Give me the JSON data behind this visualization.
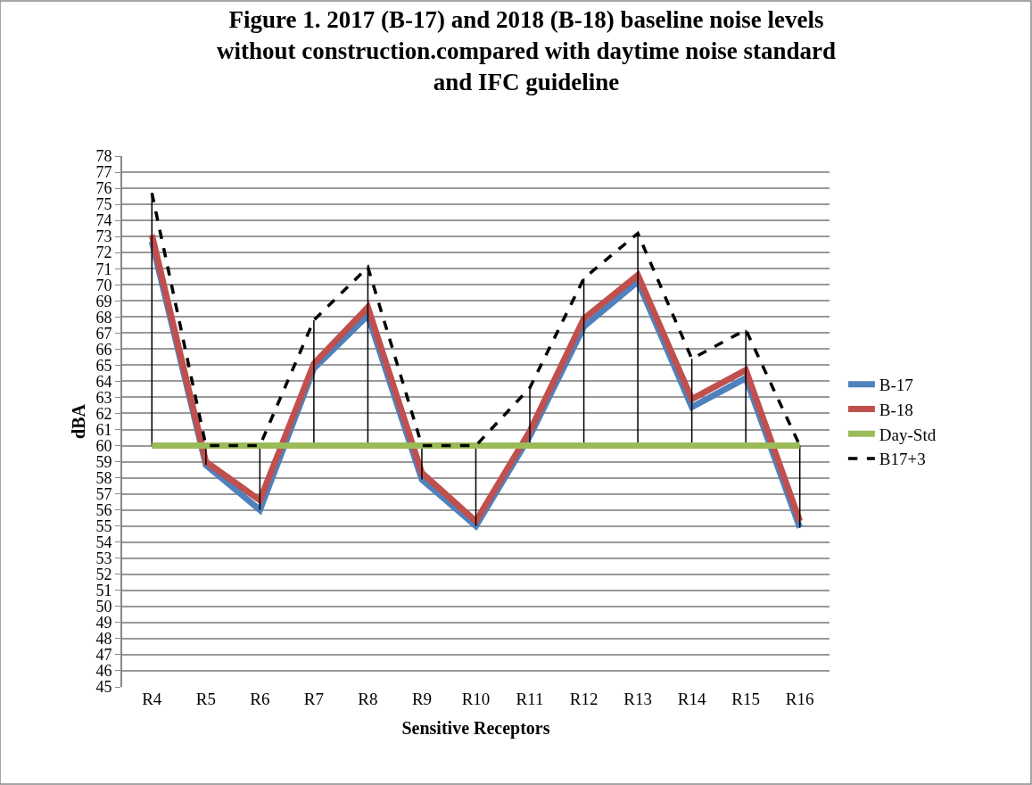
{
  "chart_data": {
    "type": "line",
    "title": "Figure 1. 2017 (B-17) and 2018 (B-18) baseline noise levels without construction.compared with daytime noise standard and IFC guideline",
    "xlabel": "Sensitive Receptors",
    "ylabel": "dBA",
    "categories": [
      "R4",
      "R5",
      "R6",
      "R7",
      "R8",
      "R9",
      "R10",
      "R11",
      "R12",
      "R13",
      "R14",
      "R15",
      "R16"
    ],
    "series": [
      {
        "name": "B-17",
        "color": "#4f81bd",
        "values": [
          72.7,
          58.8,
          56.0,
          64.8,
          68.1,
          57.9,
          55.0,
          60.6,
          67.4,
          70.2,
          62.4,
          64.2,
          54.9
        ]
      },
      {
        "name": "B-18",
        "color": "#c0504d",
        "values": [
          73.1,
          59.0,
          56.6,
          65.1,
          68.6,
          58.3,
          55.3,
          60.9,
          67.9,
          70.6,
          62.9,
          64.7,
          55.3
        ]
      },
      {
        "name": "Day-Std",
        "color": "#9bbb59",
        "values": [
          60,
          60,
          60,
          60,
          60,
          60,
          60,
          60,
          60,
          60,
          60,
          60,
          60
        ],
        "errors": [
          [
            60,
            75.7
          ],
          [
            58.8,
            60
          ],
          [
            56.0,
            60
          ],
          [
            60,
            67.8
          ],
          [
            60,
            71.1
          ],
          [
            57.9,
            60
          ],
          [
            55.0,
            60
          ],
          [
            60,
            63.6
          ],
          [
            60,
            70.4
          ],
          [
            60,
            73.2
          ],
          [
            60,
            65.4
          ],
          [
            60,
            67.2
          ],
          [
            54.9,
            60
          ]
        ]
      },
      {
        "name": "B17+3",
        "color": "#000000",
        "line_style": "dashed",
        "values": [
          75.7,
          60,
          60,
          67.8,
          71.1,
          60,
          60,
          63.6,
          70.4,
          73.2,
          65.4,
          67.2,
          60
        ]
      }
    ],
    "ylim": [
      45,
      78
    ],
    "yticks": [
      45,
      46,
      47,
      48,
      49,
      50,
      51,
      52,
      53,
      54,
      55,
      56,
      57,
      58,
      59,
      60,
      61,
      62,
      63,
      64,
      65,
      66,
      67,
      68,
      69,
      70,
      71,
      72,
      73,
      74,
      75,
      76,
      77,
      78
    ],
    "grid": "y",
    "legend": "right",
    "marker": "none",
    "line_style": "solid"
  }
}
